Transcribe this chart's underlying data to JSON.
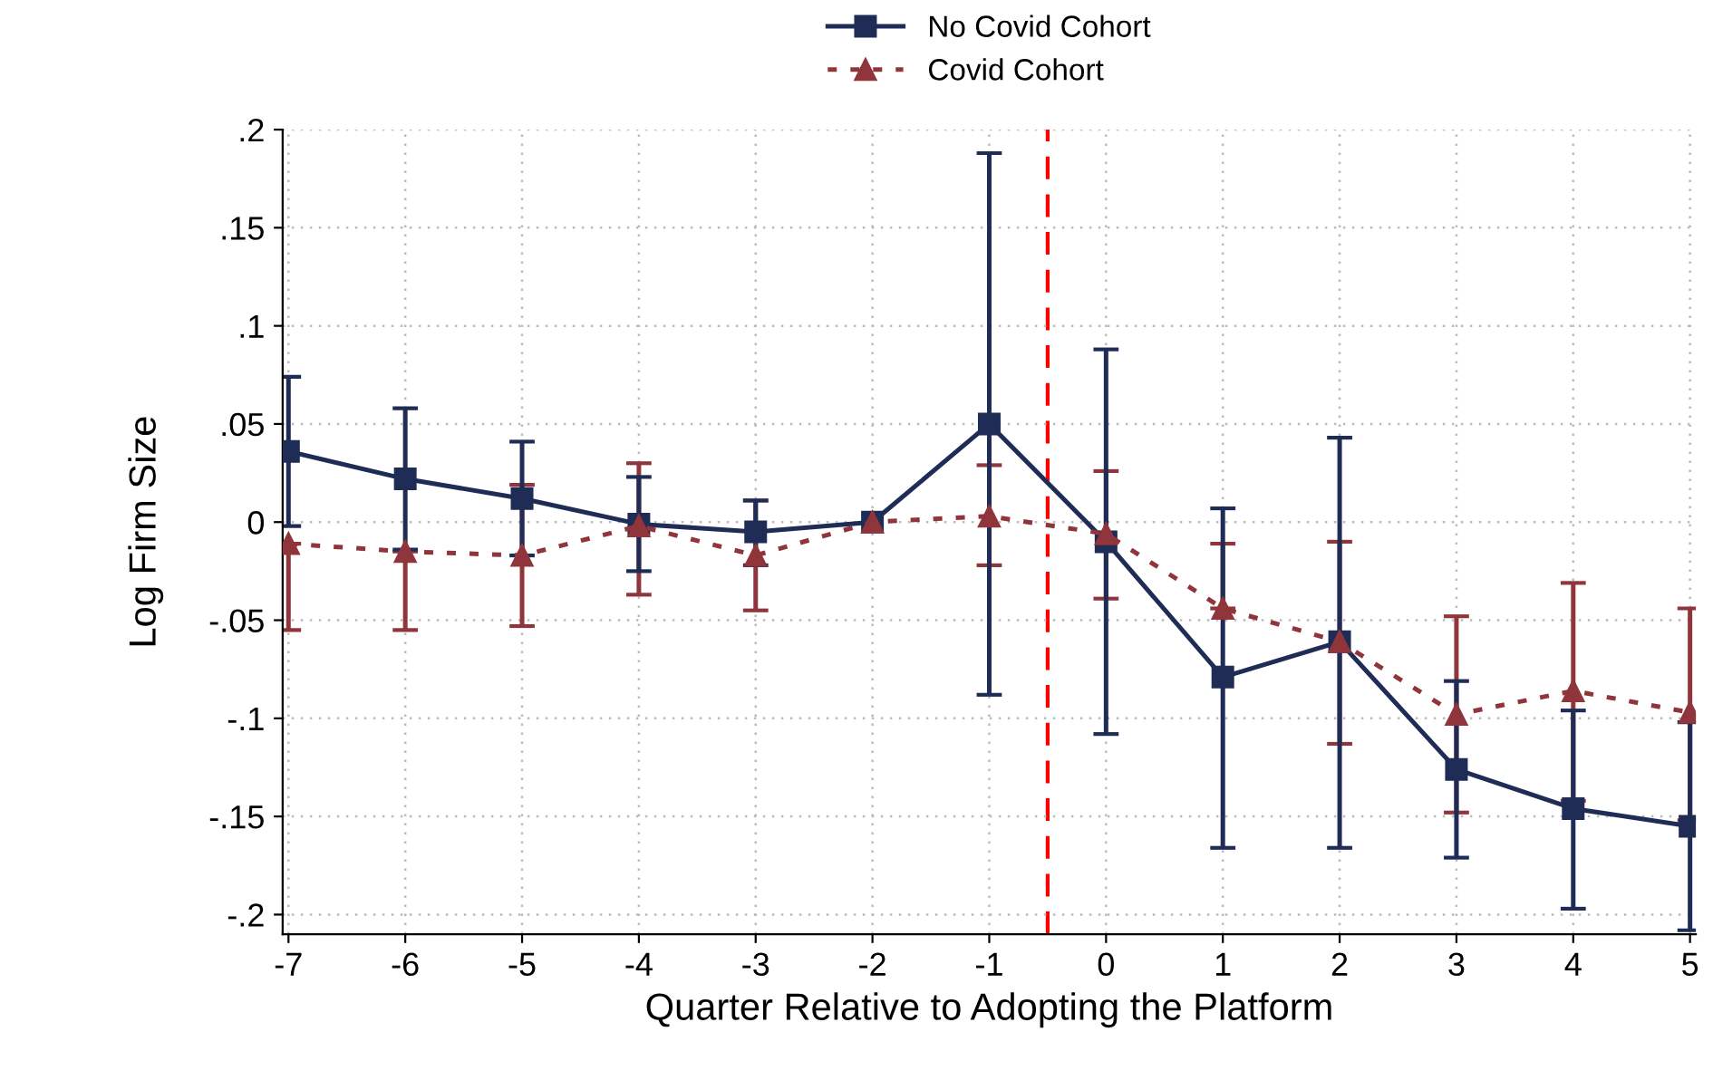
{
  "chart_data": {
    "type": "line",
    "xlabel": "Quarter Relative to Adopting the Platform",
    "ylabel": "Log Firm Size",
    "x": [
      -7,
      -6,
      -5,
      -4,
      -3,
      -2,
      -1,
      0,
      1,
      2,
      3,
      4,
      5
    ],
    "series": [
      {
        "name": "No Covid Cohort",
        "color": "#1f2d56",
        "marker": "square",
        "line_style": "solid",
        "values": [
          0.036,
          0.022,
          0.012,
          -0.001,
          -0.005,
          0,
          0.05,
          -0.01,
          -0.079,
          -0.061,
          -0.126,
          -0.146,
          -0.155
        ],
        "errors": [
          [
            -0.002,
            0.074
          ],
          [
            -0.014,
            0.058
          ],
          [
            -0.017,
            0.041
          ],
          [
            -0.025,
            0.023
          ],
          [
            -0.022,
            0.011
          ],
          null,
          [
            -0.088,
            0.188
          ],
          [
            -0.108,
            0.088
          ],
          [
            -0.166,
            0.007
          ],
          [
            -0.166,
            0.043
          ],
          [
            -0.171,
            -0.081
          ],
          [
            -0.197,
            -0.096
          ],
          [
            -0.208,
            -0.102
          ]
        ]
      },
      {
        "name": "Covid Cohort",
        "color": "#90353b",
        "marker": "triangle",
        "line_style": "dotted",
        "values": [
          -0.011,
          -0.015,
          -0.017,
          -0.002,
          -0.017,
          0,
          0.003,
          -0.006,
          -0.044,
          -0.061,
          -0.098,
          -0.086,
          -0.097
        ],
        "errors": [
          [
            -0.055,
            -0.011
          ],
          [
            -0.055,
            -0.015
          ],
          [
            -0.053,
            0.019
          ],
          [
            -0.037,
            0.03
          ],
          [
            -0.045,
            0.011
          ],
          null,
          [
            -0.022,
            0.029
          ],
          [
            -0.039,
            0.026
          ],
          [
            -0.044,
            -0.011
          ],
          [
            -0.113,
            -0.01
          ],
          [
            -0.148,
            -0.048
          ],
          [
            -0.142,
            -0.031
          ],
          [
            -0.152,
            -0.044
          ]
        ]
      }
    ],
    "xlim": [
      -7,
      5
    ],
    "xticks": [
      -7,
      -6,
      -5,
      -4,
      -3,
      -2,
      -1,
      0,
      1,
      2,
      3,
      4,
      5
    ],
    "ylim": [
      -0.21,
      0.2
    ],
    "yticks": [
      {
        "value": -0.2,
        "label": "-.2"
      },
      {
        "value": -0.15,
        "label": "-.15"
      },
      {
        "value": -0.1,
        "label": "-.1"
      },
      {
        "value": -0.05,
        "label": "-.05"
      },
      {
        "value": 0,
        "label": "0"
      },
      {
        "value": 0.05,
        "label": ".05"
      },
      {
        "value": 0.1,
        "label": ".1"
      },
      {
        "value": 0.15,
        "label": ".15"
      },
      {
        "value": 0.2,
        "label": ".2"
      }
    ],
    "ref_lines": [
      {
        "axis": "x",
        "value": -0.5,
        "color": "#ff0000",
        "line_style": "dashed"
      }
    ],
    "grid": true,
    "legend": "top"
  }
}
